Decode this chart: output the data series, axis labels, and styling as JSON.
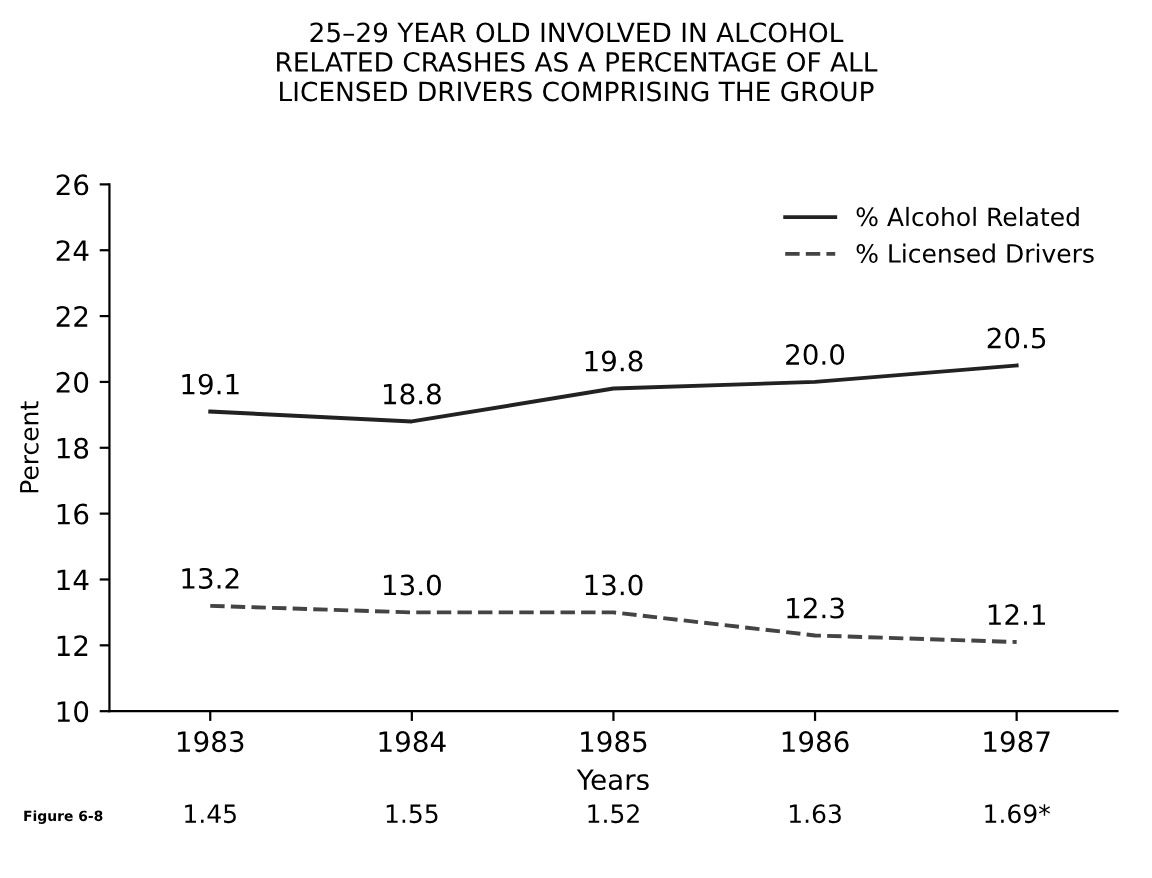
{
  "chart_data": {
    "type": "line",
    "title": "25–29 YEAR OLD INVOLVED IN ALCOHOL\nRELATED CRASHES AS A PERCENTAGE OF ALL\nLICENSED DRIVERS COMPRISING THE GROUP",
    "xlabel": "Years",
    "ylabel": "Percent",
    "categories": [
      "1983",
      "1984",
      "1985",
      "1986",
      "1987"
    ],
    "series": [
      {
        "name": "% Alcohol Related",
        "color": "#222222",
        "line_style": "solid",
        "values": [
          19.1,
          18.8,
          19.8,
          20.0,
          20.5
        ],
        "value_labels": [
          "19.1",
          "18.8",
          "19.8",
          "20.0",
          "20.5"
        ]
      },
      {
        "name": "% Licensed Drivers",
        "color": "#444444",
        "line_style": "dashed",
        "values": [
          13.2,
          13.0,
          13.0,
          12.3,
          12.1
        ],
        "value_labels": [
          "13.2",
          "13.0",
          "13.0",
          "12.3",
          "12.1"
        ]
      }
    ],
    "ylim": [
      10,
      26
    ],
    "yticks": [
      10,
      12,
      14,
      16,
      18,
      20,
      22,
      24,
      26
    ],
    "legend": "top right",
    "grid": false,
    "marker": "none",
    "annotations": [
      "Figure 6-8",
      "1.45",
      "1.55",
      "1.52",
      "1.63",
      "1.69*"
    ]
  }
}
